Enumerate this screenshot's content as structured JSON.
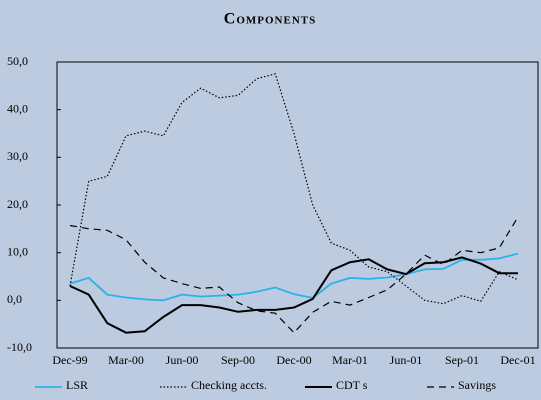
{
  "chart_data": {
    "type": "line",
    "title": "Components",
    "categories": [
      "Dec-99",
      null,
      null,
      "Mar-00",
      null,
      null,
      "Jun-00",
      null,
      null,
      "Sep-00",
      null,
      null,
      "Dec-00",
      null,
      null,
      "Mar-01",
      null,
      null,
      "Jun-01",
      null,
      null,
      "Sep-01",
      null,
      null,
      "Dec-01"
    ],
    "series": [
      {
        "name": "LSR",
        "color": "#29b4e8",
        "style": "solid",
        "values": [
          3.5,
          4.7,
          1.2,
          0.6,
          0.2,
          0.0,
          1.2,
          0.8,
          1.0,
          1.2,
          1.8,
          2.7,
          1.3,
          0.5,
          3.5,
          4.7,
          4.5,
          4.8,
          5.5,
          6.5,
          6.6,
          8.5,
          8.5,
          8.8,
          9.8
        ]
      },
      {
        "name": "Checking accts.",
        "color": "#000000",
        "style": "dotted",
        "values": [
          3.0,
          25.0,
          26.0,
          34.5,
          35.5,
          34.5,
          41.5,
          44.5,
          42.5,
          43.0,
          46.5,
          47.5,
          35.0,
          20.0,
          12.0,
          10.5,
          7.0,
          6.0,
          3.0,
          0.0,
          -0.7,
          1.0,
          -0.2,
          6.0,
          4.3
        ]
      },
      {
        "name": "CDT s",
        "color": "#000000",
        "style": "solid-thick",
        "values": [
          3.0,
          1.2,
          -4.8,
          -6.8,
          -6.5,
          -3.5,
          -1.0,
          -1.0,
          -1.5,
          -2.4,
          -2.0,
          -2.0,
          -1.5,
          0.3,
          6.3,
          8.0,
          8.6,
          6.5,
          5.5,
          7.8,
          8.0,
          9.0,
          7.7,
          5.7,
          5.7
        ]
      },
      {
        "name": "Savings",
        "color": "#000000",
        "style": "dashed",
        "values": [
          15.7,
          15.0,
          14.7,
          12.7,
          8.0,
          4.7,
          3.5,
          2.5,
          2.8,
          -0.5,
          -2.2,
          -2.7,
          -6.8,
          -2.5,
          -0.2,
          -1.0,
          0.6,
          2.2,
          5.5,
          9.5,
          7.5,
          10.5,
          10.0,
          11.0,
          17.5
        ]
      }
    ],
    "ylim": [
      -10,
      50
    ],
    "yticks": [
      {
        "value": -10,
        "label": "-10,0"
      },
      {
        "value": 0,
        "label": "0,0"
      },
      {
        "value": 10,
        "label": "10,0"
      },
      {
        "value": 20,
        "label": "20,0"
      },
      {
        "value": 30,
        "label": "30,0"
      },
      {
        "value": 40,
        "label": "40,0"
      },
      {
        "value": 50,
        "label": "50,0"
      }
    ]
  }
}
